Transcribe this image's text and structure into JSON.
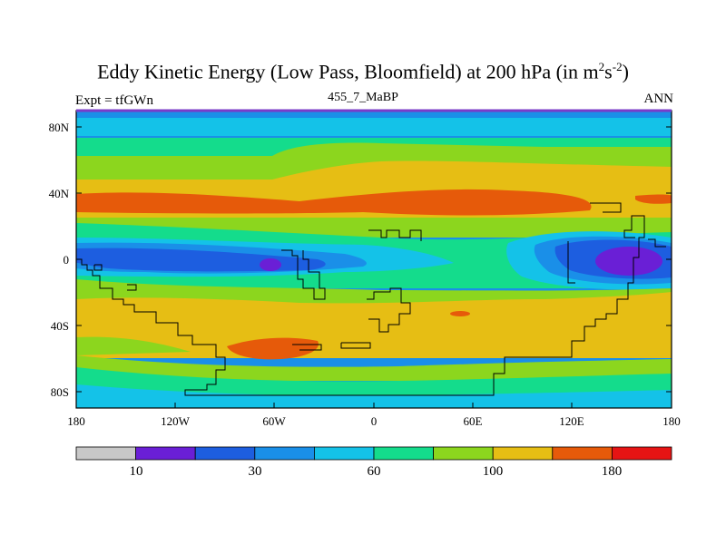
{
  "title": {
    "main": "Eddy Kinetic Energy (Low Pass, Bloomfield) at 200 hPa (in m",
    "sup1": "2",
    "mid": "s",
    "sup2": "-2",
    "end": ")"
  },
  "subtitle": {
    "left": "Expt = tfGWn",
    "center": "455_7_MaBP",
    "right": "ANN"
  },
  "map": {
    "y_axis_labels": [
      "80N",
      "40N",
      "0",
      "40S",
      "80S"
    ],
    "x_axis_labels": [
      "180",
      "120W",
      "60W",
      "0",
      "60E",
      "120E",
      "180"
    ]
  },
  "colorbar": {
    "colors": [
      "#c8c8c8",
      "#6a1fd6",
      "#1d5ee0",
      "#1a8fe8",
      "#14c2e8",
      "#14dc8c",
      "#8cd61e",
      "#e6be14",
      "#e65a0a",
      "#e61414"
    ],
    "labels": [
      "10",
      "30",
      "60",
      "100",
      "180"
    ]
  },
  "palette": {
    "blue_dark": "#1d5ee0",
    "blue": "#1a8fe8",
    "cyan": "#14c2e8",
    "teal": "#14dc8c",
    "green": "#8cd61e",
    "yellow": "#e6be14",
    "orange": "#e65a0a",
    "purple": "#6a1fd6"
  }
}
